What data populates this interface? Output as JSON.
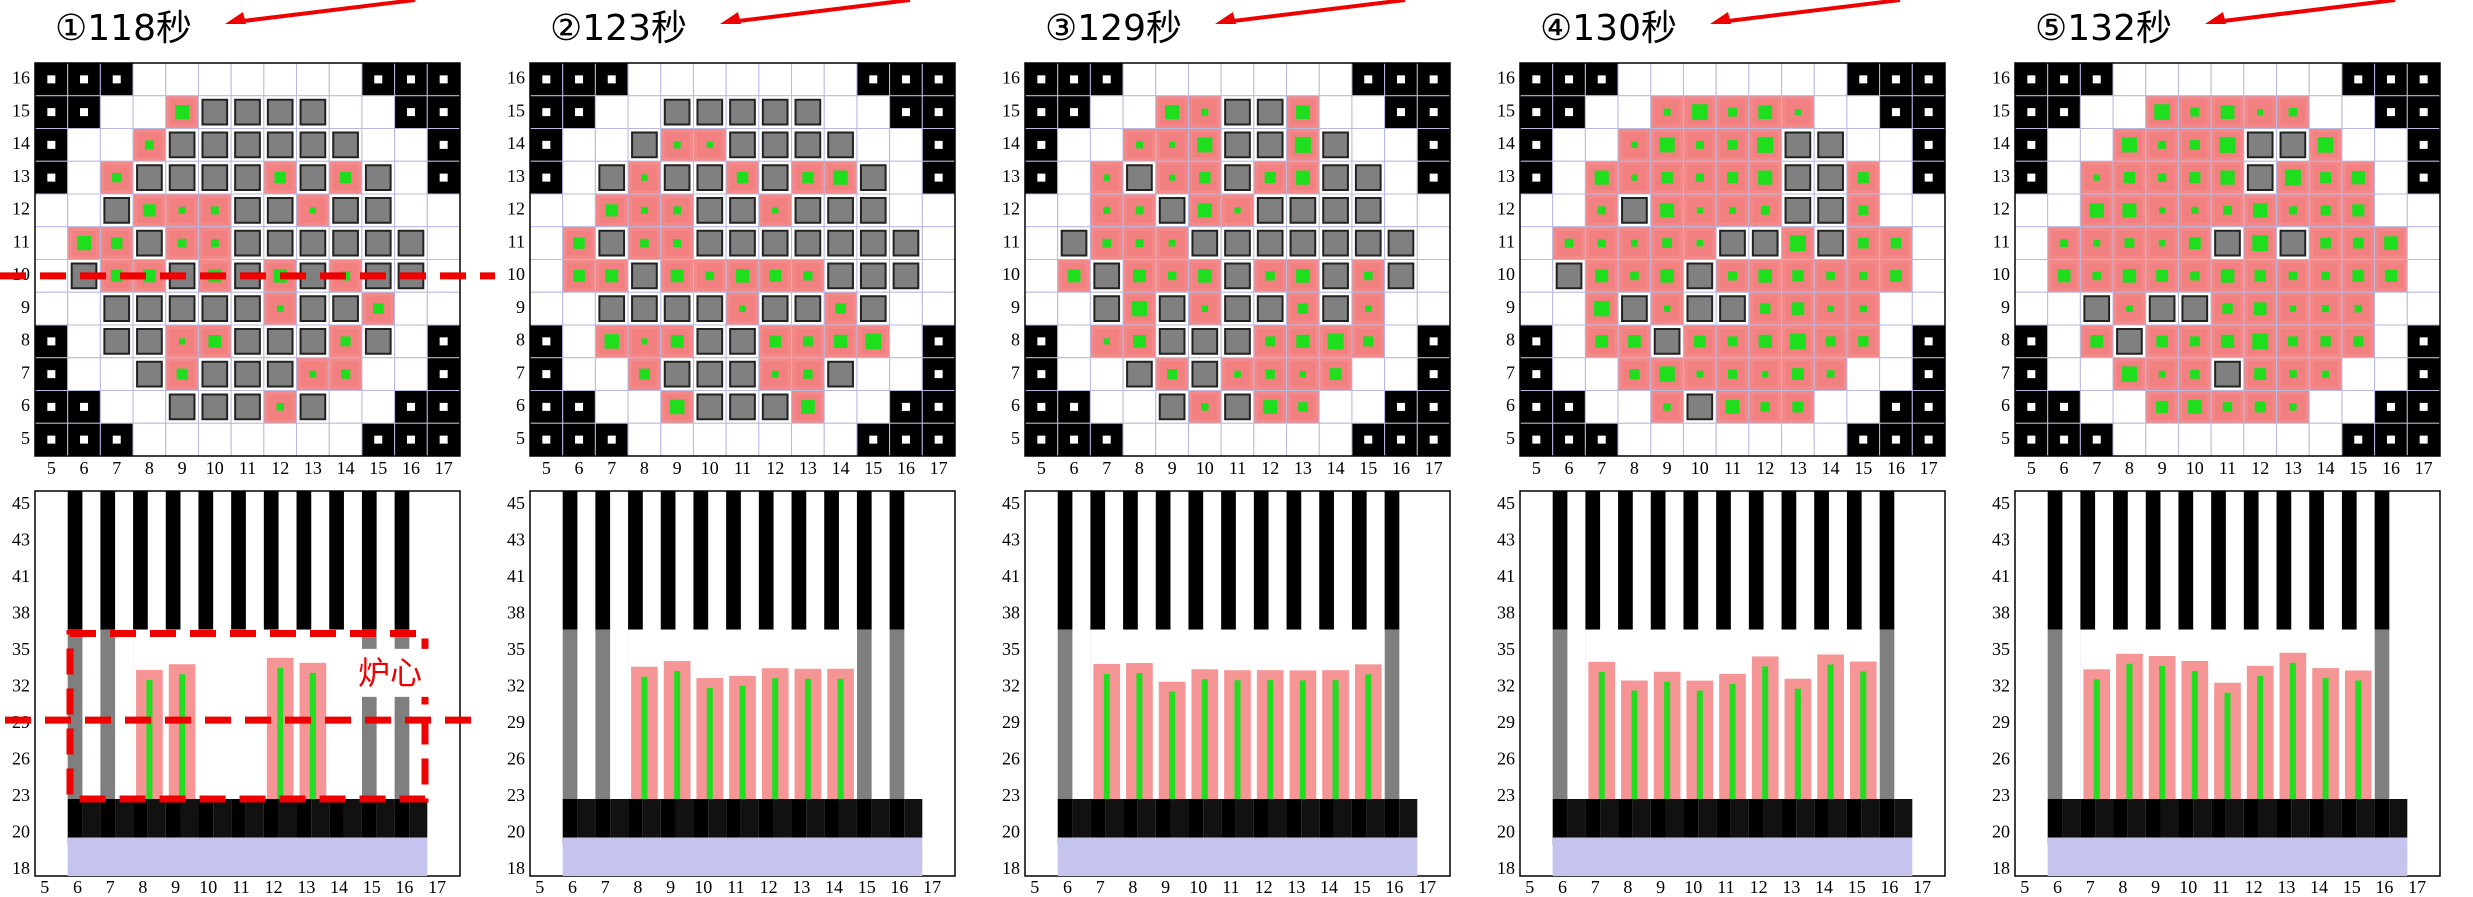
{
  "panels": [
    {
      "title": "①118秒"
    },
    {
      "title": "②123秒"
    },
    {
      "title": "③129秒"
    },
    {
      "title": "④130秒"
    },
    {
      "title": "⑤132秒"
    }
  ],
  "top_grid": {
    "x_labels": [
      5,
      6,
      7,
      8,
      9,
      10,
      11,
      12,
      13,
      14,
      15,
      16,
      17
    ],
    "y_labels": [
      16,
      15,
      14,
      13,
      12,
      11,
      10,
      9,
      8,
      7,
      6,
      5
    ]
  },
  "bottom_grid": {
    "x_labels": [
      5,
      6,
      7,
      8,
      9,
      10,
      11,
      12,
      13,
      14,
      15,
      16,
      17
    ],
    "y_labels": [
      45,
      43,
      41,
      38,
      35,
      32,
      29,
      26,
      23,
      20,
      18
    ]
  },
  "annotation": "炉心"
}
